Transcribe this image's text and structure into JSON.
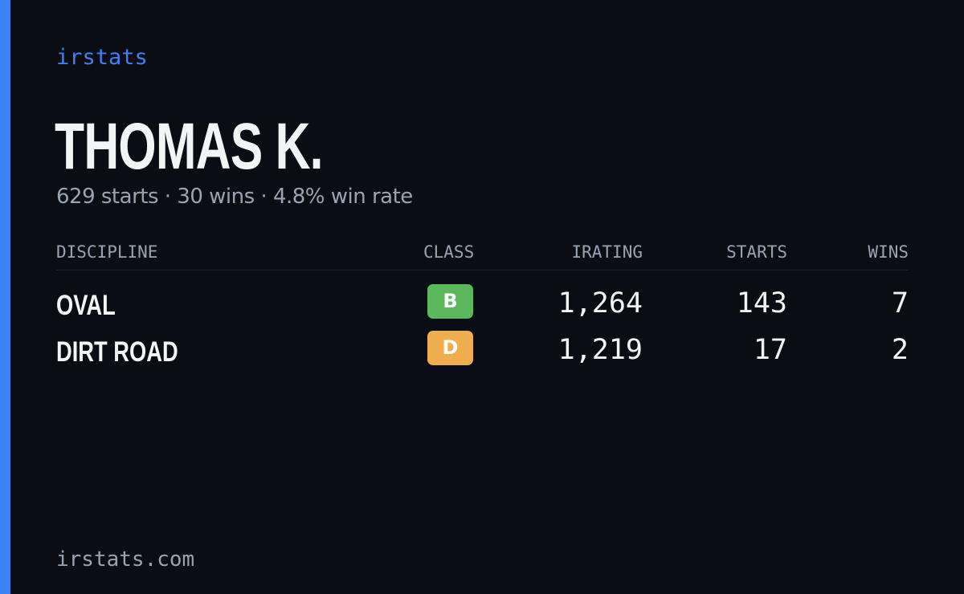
{
  "brand": "irstats",
  "driver": {
    "name": "THOMAS K.",
    "summary": "629 starts · 30 wins · 4.8% win rate"
  },
  "table": {
    "headers": {
      "discipline": "DISCIPLINE",
      "class": "CLASS",
      "irating": "IRATING",
      "starts": "STARTS",
      "wins": "WINS"
    },
    "rows": [
      {
        "discipline": "OVAL",
        "class": "B",
        "class_color": "#5cb85c",
        "irating": "1,264",
        "starts": "143",
        "wins": "7"
      },
      {
        "discipline": "DIRT ROAD",
        "class": "D",
        "class_color": "#f0ad4e",
        "irating": "1,219",
        "starts": "17",
        "wins": "2"
      }
    ]
  },
  "footer": "irstats.com",
  "colors": {
    "accent": "#3b82f6",
    "background": "#0a0d14",
    "muted_text": "#9aa3b2"
  }
}
